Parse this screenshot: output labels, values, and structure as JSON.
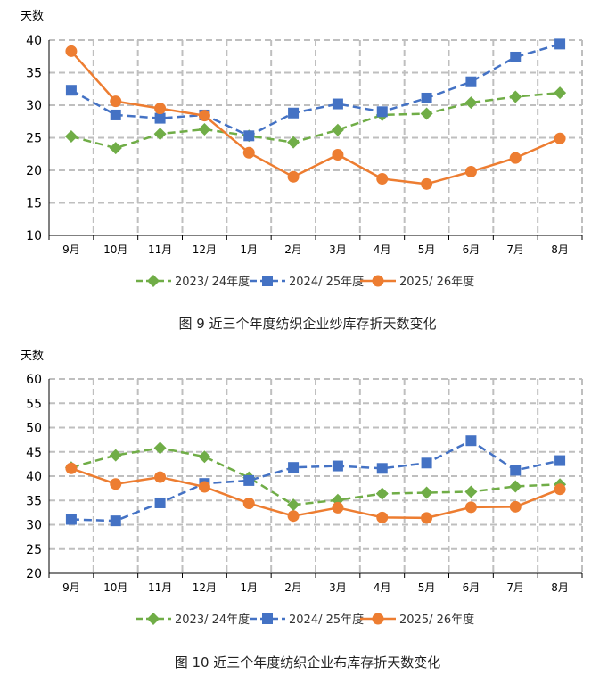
{
  "colors": {
    "series_2023_24": "#70ad47",
    "series_2024_25": "#4472c4",
    "series_2025_26": "#ed7d31",
    "grid": "#bfbfbf"
  },
  "chart_data": [
    {
      "type": "line",
      "unit_label": "天数",
      "categories": [
        "9月",
        "10月",
        "11月",
        "12月",
        "1月",
        "2月",
        "3月",
        "4月",
        "5月",
        "6月",
        "7月",
        "8月"
      ],
      "ylim": [
        10,
        40
      ],
      "yticks": [
        10,
        15,
        20,
        25,
        30,
        35,
        40
      ],
      "grid": true,
      "legend_position": "bottom",
      "series": [
        {
          "name": "2023/ 24年度",
          "marker": "diamond",
          "dash": true,
          "values": [
            25.2,
            23.4,
            25.6,
            26.3,
            25.3,
            24.3,
            26.2,
            28.5,
            28.7,
            30.4,
            31.3,
            31.9
          ]
        },
        {
          "name": "2024/ 25年度",
          "marker": "square",
          "dash": true,
          "values": [
            32.3,
            28.5,
            28.0,
            28.5,
            25.3,
            28.8,
            30.2,
            29.0,
            31.1,
            33.6,
            37.4,
            39.4
          ]
        },
        {
          "name": "2025/ 26年度",
          "marker": "circle",
          "dash": false,
          "values": [
            38.3,
            30.6,
            29.5,
            28.4,
            22.7,
            19.0,
            22.4,
            18.7,
            17.9,
            19.8,
            21.9,
            24.9
          ]
        }
      ],
      "caption": "图 9    近三个年度纺织企业纱库存折天数变化"
    },
    {
      "type": "line",
      "unit_label": "天数",
      "categories": [
        "9月",
        "10月",
        "11月",
        "12月",
        "1月",
        "2月",
        "3月",
        "4月",
        "5月",
        "6月",
        "7月",
        "8月"
      ],
      "ylim": [
        20,
        60
      ],
      "yticks": [
        20,
        25,
        30,
        35,
        40,
        45,
        50,
        55,
        60
      ],
      "grid": true,
      "legend_position": "bottom",
      "series": [
        {
          "name": "2023/ 24年度",
          "marker": "diamond",
          "dash": true,
          "values": [
            41.8,
            44.3,
            45.8,
            44.0,
            39.7,
            34.1,
            35.1,
            36.4,
            36.6,
            36.8,
            37.9,
            38.3
          ]
        },
        {
          "name": "2024/ 25年度",
          "marker": "square",
          "dash": true,
          "values": [
            31.1,
            30.8,
            34.5,
            38.5,
            39.1,
            41.8,
            42.1,
            41.6,
            42.7,
            47.3,
            41.2,
            43.2
          ]
        },
        {
          "name": "2025/ 26年度",
          "marker": "circle",
          "dash": false,
          "values": [
            41.6,
            38.4,
            39.8,
            37.8,
            34.4,
            31.8,
            33.5,
            31.5,
            31.4,
            33.6,
            33.7,
            37.3
          ]
        }
      ],
      "caption": "图 10    近三个年度纺织企业布库存折天数变化"
    }
  ]
}
